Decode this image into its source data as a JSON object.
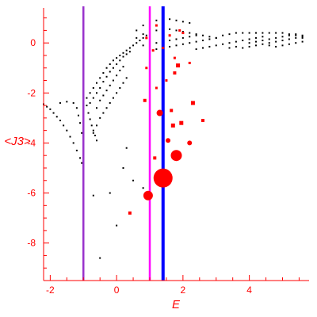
{
  "chart_data": {
    "type": "scatter",
    "title": "",
    "xlabel": "E",
    "ylabel": "<J3>",
    "xlim": [
      -2.2,
      5.8
    ],
    "ylim": [
      -9.5,
      1.4
    ],
    "x_ticks": [
      -2,
      0,
      2,
      4
    ],
    "y_ticks": [
      0,
      -2,
      -4,
      -6,
      -8
    ],
    "x_tick_labels": [
      "-2",
      "0",
      "2",
      "4"
    ],
    "y_tick_labels": [
      "0",
      "-2",
      "-4",
      "-6",
      "-8"
    ],
    "grid": false,
    "colors": {
      "axis": "#ff0000",
      "black_points": "#000000",
      "red_points": "#ff0000"
    },
    "vertical_lines": [
      {
        "x": -1.0,
        "color": "#9933cc"
      },
      {
        "x": 1.0,
        "color": "#ff00ff"
      },
      {
        "x": 1.4,
        "color": "#0000ff"
      }
    ],
    "series": [
      {
        "color": "#000000",
        "description_points": [
          [
            -2.2,
            -2.45
          ],
          [
            -2.1,
            -2.55
          ],
          [
            -2.0,
            -2.65
          ],
          [
            -1.9,
            -2.8
          ],
          [
            -1.8,
            -2.95
          ],
          [
            -1.7,
            -3.1
          ],
          [
            -1.6,
            -3.3
          ],
          [
            -1.5,
            -3.5
          ],
          [
            -1.4,
            -3.75
          ],
          [
            -1.3,
            -4.0
          ],
          [
            -1.2,
            -4.3
          ],
          [
            -1.1,
            -4.6
          ],
          [
            -1.05,
            -4.8
          ],
          [
            -1.7,
            -2.4
          ],
          [
            -1.5,
            -2.35
          ],
          [
            -1.3,
            -2.4
          ],
          [
            -1.2,
            -2.6
          ],
          [
            -1.15,
            -2.9
          ],
          [
            -1.1,
            -3.2
          ],
          [
            -1.05,
            -3.6
          ],
          [
            -1.0,
            -4.0
          ],
          [
            -0.9,
            -2.5
          ],
          [
            -0.85,
            -2.8
          ],
          [
            -0.8,
            -3.05
          ],
          [
            -0.75,
            -3.3
          ],
          [
            -0.7,
            -3.5
          ],
          [
            -0.65,
            -3.7
          ],
          [
            -0.6,
            -3.9
          ],
          [
            -0.9,
            -2.2
          ],
          [
            -0.8,
            -2.0
          ],
          [
            -0.7,
            -1.8
          ],
          [
            -0.6,
            -1.6
          ],
          [
            -0.5,
            -1.4
          ],
          [
            -0.4,
            -1.2
          ],
          [
            -0.3,
            -1.0
          ],
          [
            -0.2,
            -0.85
          ],
          [
            -0.1,
            -0.7
          ],
          [
            0.0,
            -0.6
          ],
          [
            0.1,
            -0.5
          ],
          [
            0.2,
            -0.4
          ],
          [
            0.3,
            -0.3
          ],
          [
            0.4,
            -0.2
          ],
          [
            0.5,
            -0.1
          ],
          [
            0.6,
            0.0
          ],
          [
            0.7,
            0.1
          ],
          [
            0.8,
            0.2
          ],
          [
            0.9,
            0.3
          ],
          [
            -0.8,
            -2.4
          ],
          [
            -0.7,
            -2.2
          ],
          [
            -0.6,
            -2.0
          ],
          [
            -0.5,
            -1.8
          ],
          [
            -0.4,
            -1.55
          ],
          [
            -0.3,
            -1.35
          ],
          [
            -0.2,
            -1.15
          ],
          [
            -0.1,
            -1.0
          ],
          [
            0.0,
            -0.85
          ],
          [
            0.1,
            -0.7
          ],
          [
            0.2,
            -0.55
          ],
          [
            0.3,
            -0.45
          ],
          [
            0.4,
            -0.35
          ],
          [
            -0.6,
            -2.6
          ],
          [
            -0.5,
            -2.3
          ],
          [
            -0.4,
            -2.1
          ],
          [
            -0.3,
            -1.9
          ],
          [
            -0.2,
            -1.7
          ],
          [
            -0.1,
            -1.5
          ],
          [
            0.0,
            -1.3
          ],
          [
            0.1,
            -1.1
          ],
          [
            0.2,
            -0.95
          ],
          [
            -0.7,
            -3.6
          ],
          [
            -0.6,
            -3.3
          ],
          [
            -0.5,
            -3.0
          ],
          [
            -0.4,
            -2.8
          ],
          [
            -0.3,
            -2.6
          ],
          [
            -0.2,
            -2.4
          ],
          [
            -0.1,
            -2.2
          ],
          [
            0.0,
            -2.0
          ],
          [
            0.1,
            -1.8
          ],
          [
            0.2,
            -1.6
          ],
          [
            0.3,
            -1.4
          ],
          [
            0.6,
            0.5
          ],
          [
            0.8,
            0.7
          ],
          [
            1.0,
            0.85
          ],
          [
            1.2,
            0.9
          ],
          [
            1.4,
            0.95
          ],
          [
            1.6,
            0.95
          ],
          [
            1.8,
            0.9
          ],
          [
            2.0,
            0.85
          ],
          [
            2.2,
            0.8
          ],
          [
            0.6,
            0.2
          ],
          [
            0.8,
            0.35
          ],
          [
            1.0,
            0.45
          ],
          [
            1.2,
            0.5
          ],
          [
            1.4,
            0.55
          ],
          [
            1.6,
            0.55
          ],
          [
            1.8,
            0.5
          ],
          [
            2.0,
            0.45
          ],
          [
            2.2,
            0.4
          ],
          [
            2.4,
            0.35
          ],
          [
            2.6,
            0.3
          ],
          [
            2.8,
            0.25
          ],
          [
            3.0,
            0.2
          ],
          [
            0.8,
            -0.1
          ],
          [
            1.0,
            -0.05
          ],
          [
            1.2,
            0.0
          ],
          [
            1.4,
            0.05
          ],
          [
            1.6,
            0.1
          ],
          [
            1.8,
            0.15
          ],
          [
            2.0,
            0.2
          ],
          [
            2.2,
            0.25
          ],
          [
            2.4,
            0.3
          ],
          [
            1.0,
            -0.3
          ],
          [
            1.2,
            -0.25
          ],
          [
            1.4,
            -0.2
          ],
          [
            1.6,
            -0.15
          ],
          [
            1.8,
            -0.1
          ],
          [
            2.0,
            -0.05
          ],
          [
            2.2,
            0.0
          ],
          [
            2.4,
            0.05
          ],
          [
            2.6,
            0.1
          ],
          [
            2.8,
            0.15
          ],
          [
            3.0,
            0.2
          ],
          [
            2.4,
            -0.25
          ],
          [
            2.6,
            -0.2
          ],
          [
            2.8,
            -0.15
          ],
          [
            3.0,
            -0.1
          ],
          [
            3.2,
            -0.05
          ],
          [
            3.4,
            0.0
          ],
          [
            3.6,
            0.05
          ],
          [
            3.8,
            0.1
          ],
          [
            4.0,
            0.15
          ],
          [
            4.2,
            0.2
          ],
          [
            4.4,
            0.25
          ],
          [
            3.2,
            0.3
          ],
          [
            3.4,
            0.35
          ],
          [
            3.6,
            0.4
          ],
          [
            3.8,
            0.4
          ],
          [
            4.0,
            0.4
          ],
          [
            4.2,
            0.4
          ],
          [
            4.4,
            0.4
          ],
          [
            4.6,
            0.4
          ],
          [
            4.8,
            0.4
          ],
          [
            5.0,
            0.4
          ],
          [
            5.2,
            0.35
          ],
          [
            5.4,
            0.35
          ],
          [
            5.6,
            0.3
          ],
          [
            3.4,
            -0.2
          ],
          [
            3.6,
            -0.15
          ],
          [
            3.8,
            -0.2
          ],
          [
            4.0,
            -0.15
          ],
          [
            4.2,
            -0.1
          ],
          [
            4.4,
            -0.05
          ],
          [
            4.6,
            0.0
          ],
          [
            4.8,
            0.05
          ],
          [
            5.0,
            0.1
          ],
          [
            5.2,
            0.15
          ],
          [
            5.4,
            0.2
          ],
          [
            5.6,
            0.25
          ],
          [
            4.0,
            0.0
          ],
          [
            4.2,
            0.05
          ],
          [
            4.4,
            0.1
          ],
          [
            4.6,
            0.15
          ],
          [
            4.8,
            0.2
          ],
          [
            5.0,
            0.25
          ],
          [
            5.2,
            0.3
          ],
          [
            5.4,
            0.3
          ],
          [
            5.6,
            0.2
          ],
          [
            4.6,
            -0.1
          ],
          [
            4.8,
            -0.15
          ],
          [
            5.0,
            -0.1
          ],
          [
            5.2,
            -0.05
          ],
          [
            5.4,
            0.0
          ],
          [
            5.6,
            0.05
          ],
          [
            -0.7,
            -6.1
          ],
          [
            -0.2,
            -6.0
          ],
          [
            0.2,
            -5.0
          ],
          [
            0.3,
            -4.2
          ],
          [
            0.5,
            -5.5
          ],
          [
            0.8,
            -5.8
          ],
          [
            0.0,
            -7.3
          ],
          [
            -0.5,
            -8.6
          ]
        ]
      },
      {
        "color": "#ff0000",
        "markers": [
          {
            "x": 1.4,
            "y": -5.4,
            "size": 12
          },
          {
            "x": 1.8,
            "y": -4.5,
            "size": 7
          },
          {
            "x": 0.95,
            "y": -6.1,
            "size": 6
          },
          {
            "x": 1.3,
            "y": -2.8,
            "size": 4
          },
          {
            "x": 2.2,
            "y": -4.0,
            "size": 3
          },
          {
            "x": 1.55,
            "y": -3.9,
            "size": 3
          },
          {
            "x": 1.7,
            "y": -3.3,
            "size": 2.5
          },
          {
            "x": 2.3,
            "y": -2.4,
            "size": 2.5
          },
          {
            "x": 1.95,
            "y": -3.2,
            "size": 2.5
          },
          {
            "x": 2.6,
            "y": -3.1,
            "size": 2
          },
          {
            "x": 1.65,
            "y": -2.7,
            "size": 2
          },
          {
            "x": 1.85,
            "y": -0.9,
            "size": 2.5
          },
          {
            "x": 1.75,
            "y": -1.2,
            "size": 2
          },
          {
            "x": 0.85,
            "y": -2.3,
            "size": 2
          },
          {
            "x": 0.4,
            "y": -6.8,
            "size": 2
          },
          {
            "x": 1.15,
            "y": -4.6,
            "size": 2
          },
          {
            "x": 1.3,
            "y": -2.8,
            "size": 2
          },
          {
            "x": 0.9,
            "y": -1.0,
            "size": 1.5
          },
          {
            "x": 1.1,
            "y": -0.3,
            "size": 1.5
          },
          {
            "x": 1.4,
            "y": -0.2,
            "size": 1.5
          },
          {
            "x": 1.6,
            "y": 0.3,
            "size": 1.5
          },
          {
            "x": 1.9,
            "y": 0.5,
            "size": 1.5
          },
          {
            "x": 1.2,
            "y": 0.7,
            "size": 1.5
          },
          {
            "x": 0.9,
            "y": 0.2,
            "size": 1.5
          },
          {
            "x": 2.0,
            "y": 0.4,
            "size": 1.5
          },
          {
            "x": 2.2,
            "y": -0.8,
            "size": 1.5
          },
          {
            "x": 1.75,
            "y": -0.6,
            "size": 1.5
          },
          {
            "x": 1.5,
            "y": -1.5,
            "size": 1.5
          },
          {
            "x": 1.2,
            "y": -1.8,
            "size": 1.5
          }
        ]
      }
    ]
  }
}
